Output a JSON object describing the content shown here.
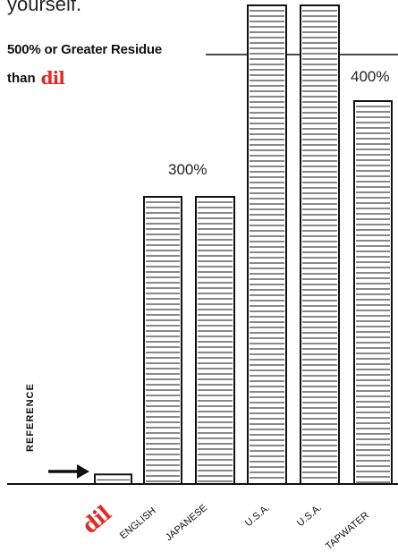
{
  "header": {
    "intro": "yourself."
  },
  "threshold": {
    "label": "500% or Greater Residue",
    "than": "than",
    "logo_text": "dil"
  },
  "reference": {
    "label": "REFERENCE"
  },
  "annotations": {
    "left_value": "300%",
    "right_value": "400%"
  },
  "chart_data": {
    "type": "bar",
    "categories": [
      "dil",
      "ENGLISH",
      "JAPANESE",
      "U.S.A.",
      "U.S.A.",
      "TAPWATER"
    ],
    "values": [
      10,
      300,
      300,
      500,
      500,
      400
    ],
    "ylim": [
      0,
      500
    ],
    "grid": false,
    "colors": {
      "bar_stroke": "#111111",
      "bar_fill": "#ffffff",
      "logo": "#e02b27"
    }
  }
}
